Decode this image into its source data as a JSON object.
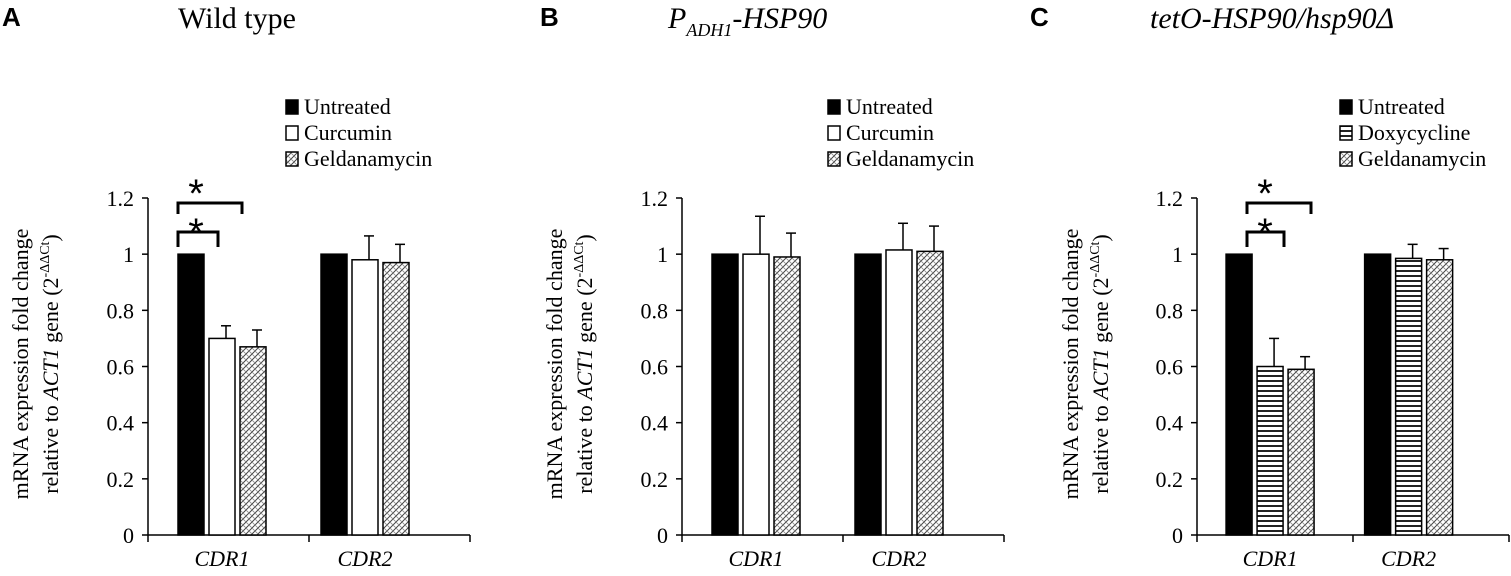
{
  "panels": [
    {
      "letter": "A",
      "title": "Wild type",
      "title_italic": false,
      "legend": [
        "Untreated",
        "Curcumin",
        "Geldanamycin"
      ],
      "ylabel_line1": "mRNA expression fold change",
      "ylabel_line2_pre": "relative to ",
      "ylabel_line2_gene": "ACT1",
      "ylabel_line2_post": " gene (2",
      "ylabel_sup": "-ΔΔCt",
      "ylabel_close": ")",
      "significance": [
        "*",
        "*"
      ]
    },
    {
      "letter": "B",
      "title_main": "P",
      "title_sub": "ADH1",
      "title_rest": "-HSP90",
      "title_italic": true,
      "legend": [
        "Untreated",
        "Curcumin",
        "Geldanamycin"
      ],
      "ylabel_line1": "mRNA expression fold change",
      "ylabel_line2_pre": "relative to ",
      "ylabel_line2_gene": "ACT1",
      "ylabel_line2_post": " gene (2",
      "ylabel_sup": "-ΔΔCt",
      "ylabel_close": ")",
      "significance": []
    },
    {
      "letter": "C",
      "title": "tetO-HSP90/hsp90Δ",
      "title_italic": true,
      "legend": [
        "Untreated",
        "Doxycycline",
        "Geldanamycin"
      ],
      "ylabel_line1": "mRNA expression fold change",
      "ylabel_line2_pre": "relative to ",
      "ylabel_line2_gene": "ACT1",
      "ylabel_line2_post": " gene (2",
      "ylabel_sup": "-ΔΔCt",
      "ylabel_close": ")",
      "significance": [
        "*",
        "*"
      ]
    }
  ],
  "chart_data": [
    {
      "type": "bar",
      "categories": [
        "CDR1",
        "CDR2"
      ],
      "ylim": [
        0,
        1.2
      ],
      "yticks": [
        "0",
        "0.2",
        "0.4",
        "0.6",
        "0.8",
        "1",
        "1.2"
      ],
      "series": [
        {
          "name": "Untreated",
          "fill": "solid",
          "values": [
            1.0,
            1.0
          ],
          "errors": [
            0.0,
            0.0
          ]
        },
        {
          "name": "Curcumin",
          "fill": "white",
          "values": [
            0.7,
            0.98
          ],
          "errors": [
            0.045,
            0.085
          ]
        },
        {
          "name": "Geldanamycin",
          "fill": "crosshatch",
          "values": [
            0.67,
            0.97
          ],
          "errors": [
            0.06,
            0.065
          ]
        }
      ]
    },
    {
      "type": "bar",
      "categories": [
        "CDR1",
        "CDR2"
      ],
      "ylim": [
        0,
        1.2
      ],
      "yticks": [
        "0",
        "0.2",
        "0.4",
        "0.6",
        "0.8",
        "1",
        "1.2"
      ],
      "series": [
        {
          "name": "Untreated",
          "fill": "solid",
          "values": [
            1.0,
            1.0
          ],
          "errors": [
            0.0,
            0.0
          ]
        },
        {
          "name": "Curcumin",
          "fill": "white",
          "values": [
            1.0,
            1.015
          ],
          "errors": [
            0.135,
            0.095
          ]
        },
        {
          "name": "Geldanamycin",
          "fill": "crosshatch",
          "values": [
            0.99,
            1.01
          ],
          "errors": [
            0.085,
            0.09
          ]
        }
      ]
    },
    {
      "type": "bar",
      "categories": [
        "CDR1",
        "CDR2"
      ],
      "ylim": [
        0,
        1.2
      ],
      "yticks": [
        "0",
        "0.2",
        "0.4",
        "0.6",
        "0.8",
        "1",
        "1.2"
      ],
      "series": [
        {
          "name": "Untreated",
          "fill": "solid",
          "values": [
            1.0,
            1.0
          ],
          "errors": [
            0.0,
            0.0
          ]
        },
        {
          "name": "Doxycycline",
          "fill": "hstripe",
          "values": [
            0.6,
            0.985
          ],
          "errors": [
            0.1,
            0.05
          ]
        },
        {
          "name": "Geldanamycin",
          "fill": "crosshatch",
          "values": [
            0.59,
            0.98
          ],
          "errors": [
            0.045,
            0.04
          ]
        }
      ]
    }
  ]
}
